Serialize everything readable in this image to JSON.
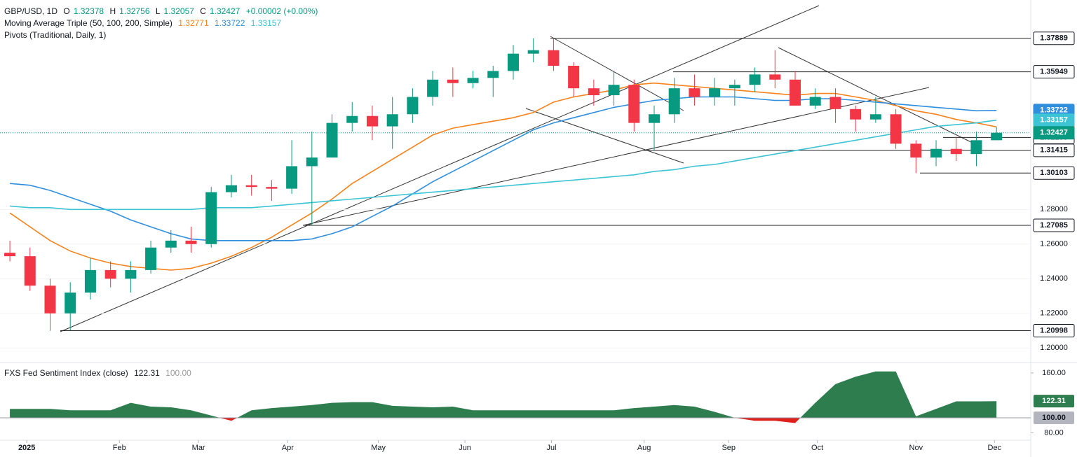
{
  "chart_data": {
    "type": "candlestick",
    "title": "GBP/USD, 1D",
    "ohlc_labels": [
      "O",
      "H",
      "L",
      "C"
    ],
    "ohlc_values": [
      1.32378,
      1.32756,
      1.32057,
      1.32427
    ],
    "change": "+0.00002 (+0.00%)",
    "up_color": "#089981",
    "down_color": "#f23645",
    "categories": [
      null,
      null,
      null,
      null,
      null,
      null,
      null,
      null,
      null,
      null,
      null,
      null,
      null,
      null,
      null,
      null,
      null,
      null,
      null,
      null,
      null,
      null,
      null,
      null,
      null,
      null,
      null,
      null,
      null,
      null,
      null,
      null,
      null,
      null,
      null,
      null,
      null,
      null,
      null,
      null,
      null,
      null,
      null,
      null,
      null,
      null,
      null,
      null,
      null,
      null
    ],
    "open": [
      1.255,
      1.253,
      1.236,
      1.22,
      1.232,
      1.245,
      1.24,
      1.245,
      1.258,
      1.262,
      1.26,
      1.29,
      1.294,
      1.293,
      1.292,
      1.305,
      1.31,
      1.33,
      1.334,
      1.328,
      1.335,
      1.345,
      1.355,
      1.353,
      1.356,
      1.36,
      1.37,
      1.372,
      1.363,
      1.35,
      1.346,
      1.352,
      1.33,
      1.335,
      1.35,
      1.345,
      1.35,
      1.352,
      1.358,
      1.355,
      1.34,
      1.345,
      1.338,
      1.332,
      1.335,
      1.318,
      1.31,
      1.315,
      1.312,
      1.32
    ],
    "high": [
      1.262,
      1.258,
      1.24,
      1.238,
      1.252,
      1.25,
      1.25,
      1.262,
      1.268,
      1.27,
      1.293,
      1.3,
      1.3,
      1.297,
      1.32,
      1.325,
      1.335,
      1.342,
      1.34,
      1.345,
      1.35,
      1.36,
      1.362,
      1.36,
      1.363,
      1.375,
      1.3789,
      1.379,
      1.365,
      1.355,
      1.36,
      1.355,
      1.34,
      1.356,
      1.358,
      1.356,
      1.355,
      1.362,
      1.372,
      1.36,
      1.35,
      1.35,
      1.34,
      1.345,
      1.338,
      1.32,
      1.32,
      1.322,
      1.325,
      1.3276
    ],
    "low": [
      1.25,
      1.233,
      1.2099,
      1.21,
      1.228,
      1.235,
      1.232,
      1.243,
      1.255,
      1.255,
      1.258,
      1.287,
      1.288,
      1.285,
      1.289,
      1.2709,
      1.31,
      1.325,
      1.32,
      1.315,
      1.33,
      1.34,
      1.345,
      1.35,
      1.345,
      1.355,
      1.365,
      1.36,
      1.345,
      1.34,
      1.34,
      1.325,
      1.3142,
      1.33,
      1.34,
      1.34,
      1.34,
      1.348,
      1.35,
      1.34,
      1.338,
      1.33,
      1.325,
      1.33,
      1.315,
      1.301,
      1.305,
      1.308,
      1.305,
      1.3206
    ],
    "close": [
      1.253,
      1.236,
      1.22,
      1.232,
      1.245,
      1.24,
      1.245,
      1.258,
      1.262,
      1.26,
      1.29,
      1.294,
      1.293,
      1.292,
      1.305,
      1.31,
      1.33,
      1.334,
      1.328,
      1.335,
      1.345,
      1.355,
      1.353,
      1.356,
      1.36,
      1.37,
      1.372,
      1.363,
      1.35,
      1.346,
      1.352,
      1.33,
      1.335,
      1.35,
      1.345,
      1.35,
      1.352,
      1.358,
      1.355,
      1.34,
      1.345,
      1.338,
      1.332,
      1.335,
      1.318,
      1.31,
      1.315,
      1.312,
      1.32,
      1.3243
    ],
    "ma_title": "Moving Average Triple (50, 100, 200, Simple)",
    "series": [
      {
        "color": "#f7821b",
        "last": 1.32771,
        "values": [
          1.278,
          1.27,
          1.262,
          1.256,
          1.252,
          1.249,
          1.247,
          1.246,
          1.245,
          1.246,
          1.249,
          1.253,
          1.258,
          1.264,
          1.271,
          1.278,
          1.286,
          1.295,
          1.302,
          1.309,
          1.316,
          1.323,
          1.327,
          1.329,
          1.331,
          1.333,
          1.336,
          1.342,
          1.345,
          1.347,
          1.349,
          1.352,
          1.353,
          1.352,
          1.351,
          1.35,
          1.349,
          1.348,
          1.347,
          1.346,
          1.347,
          1.347,
          1.345,
          1.343,
          1.34,
          1.337,
          1.335,
          1.332,
          1.33,
          1.3277
        ]
      },
      {
        "color": "#2f8fde",
        "last": 1.33722,
        "values": [
          1.295,
          1.294,
          1.291,
          1.287,
          1.283,
          1.279,
          1.274,
          1.27,
          1.266,
          1.263,
          1.262,
          1.262,
          1.262,
          1.262,
          1.262,
          1.263,
          1.266,
          1.27,
          1.276,
          1.282,
          1.289,
          1.296,
          1.302,
          1.308,
          1.314,
          1.32,
          1.326,
          1.33,
          1.333,
          1.336,
          1.339,
          1.341,
          1.343,
          1.344,
          1.345,
          1.345,
          1.345,
          1.344,
          1.343,
          1.343,
          1.344,
          1.344,
          1.343,
          1.342,
          1.341,
          1.34,
          1.339,
          1.338,
          1.337,
          1.3372
        ]
      },
      {
        "color": "#3cc4d4",
        "last": 1.33157,
        "values": [
          1.282,
          1.281,
          1.281,
          1.28,
          1.28,
          1.28,
          1.28,
          1.28,
          1.28,
          1.28,
          1.281,
          1.281,
          1.281,
          1.282,
          1.283,
          1.284,
          1.285,
          1.286,
          1.287,
          1.288,
          1.289,
          1.29,
          1.291,
          1.292,
          1.293,
          1.294,
          1.295,
          1.296,
          1.297,
          1.298,
          1.299,
          1.3,
          1.302,
          1.303,
          1.305,
          1.306,
          1.308,
          1.31,
          1.312,
          1.314,
          1.316,
          1.318,
          1.32,
          1.322,
          1.324,
          1.326,
          1.328,
          1.329,
          1.33,
          1.3316
        ]
      }
    ],
    "pivots_title": "Pivots (Traditional, Daily, 1)",
    "pivots": [
      1.37889,
      1.35949,
      1.32159,
      1.31415,
      1.30103,
      1.27085,
      1.20998
    ],
    "xlim": [
      -0.49,
      50.7
    ],
    "xticks": [
      {
        "value": 0.84,
        "label": "2025"
      },
      {
        "value": 5.44,
        "label": "Feb"
      },
      {
        "value": 9.37,
        "label": "Mar"
      },
      {
        "value": 13.8,
        "label": "Apr"
      },
      {
        "value": 18.3,
        "label": "May"
      },
      {
        "value": 22.6,
        "label": "Jun"
      },
      {
        "value": 26.9,
        "label": "Jul"
      },
      {
        "value": 31.5,
        "label": "Aug"
      },
      {
        "value": 35.7,
        "label": "Sep"
      },
      {
        "value": 40.1,
        "label": "Oct"
      },
      {
        "value": 45.0,
        "label": "Nov"
      },
      {
        "value": 48.9,
        "label": "Dec"
      }
    ],
    "ylim": [
      1.192,
      1.401
    ],
    "yticks": [
      {
        "value": 1.28,
        "label": "1.28000"
      },
      {
        "value": 1.26,
        "label": "1.26000"
      },
      {
        "value": 1.24,
        "label": "1.24000"
      },
      {
        "value": 1.22,
        "label": "1.22000"
      },
      {
        "value": 1.2,
        "label": "1.20000"
      }
    ],
    "sentiment": {
      "title": "FXS Fed Sentiment Index (close)",
      "last": 122.31,
      "base": {
        "value": 100,
        "label": "100.00"
      },
      "up_color": "#2e7d4f",
      "down_color": "#e0211b",
      "values": [
        112,
        112,
        112,
        110,
        110,
        110,
        120,
        115,
        114,
        110,
        103,
        96,
        110,
        113,
        115,
        117,
        120,
        121,
        121,
        116,
        115,
        114,
        115,
        110,
        110,
        110,
        110,
        110,
        110,
        110,
        110,
        113,
        115,
        117,
        115,
        108,
        100,
        96,
        96,
        93,
        120,
        145,
        155,
        162,
        162,
        102,
        112,
        122,
        122,
        122.31
      ],
      "ylim": [
        71,
        173
      ],
      "yticks": [
        {
          "value": 160,
          "label": "160.00"
        },
        {
          "value": 80,
          "label": "80.00"
        }
      ]
    }
  }
}
